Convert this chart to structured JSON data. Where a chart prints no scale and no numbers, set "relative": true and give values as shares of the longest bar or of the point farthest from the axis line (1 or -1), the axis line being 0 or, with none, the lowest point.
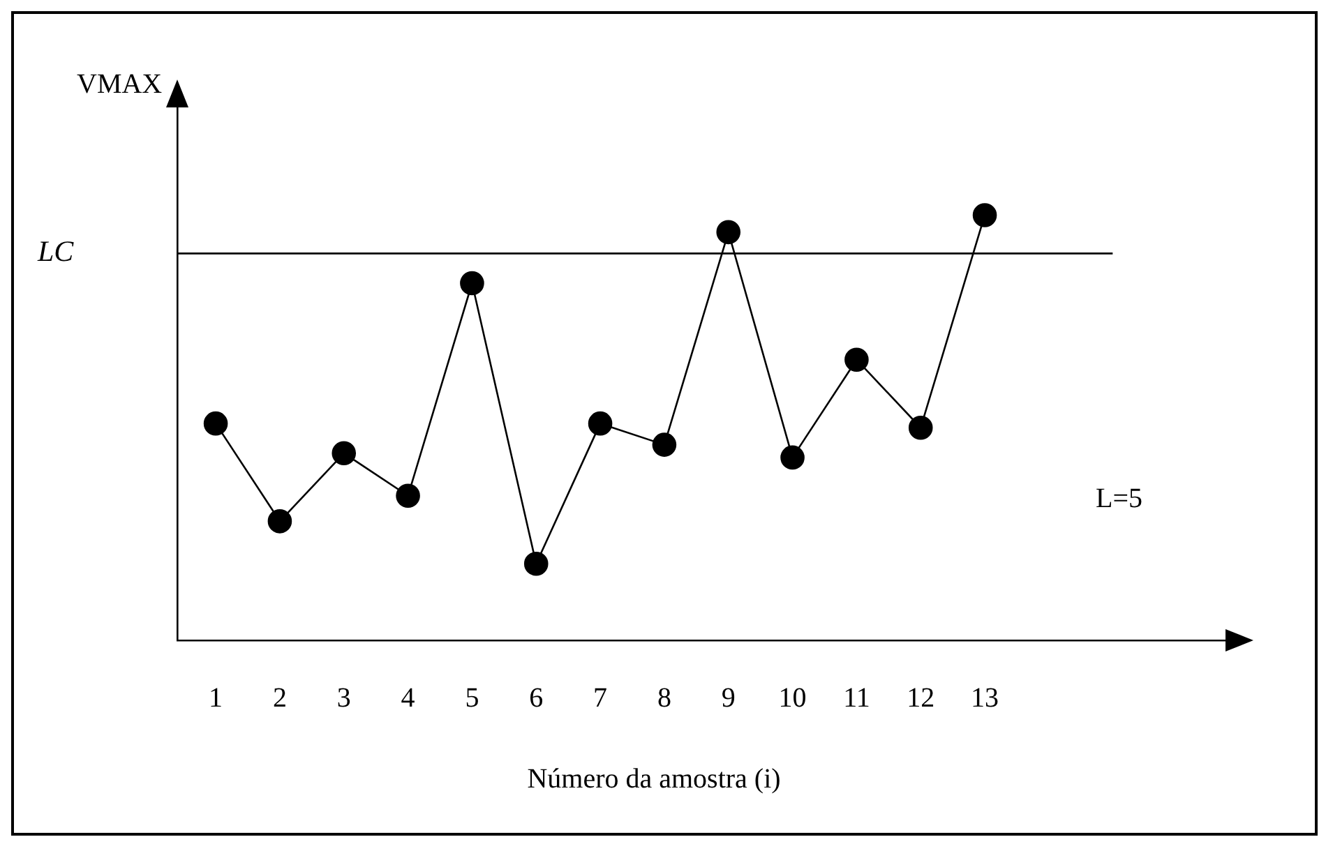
{
  "chart_data": {
    "type": "line",
    "relative": true,
    "xlabel": "Número da amostra (i)",
    "ylabel": "VMAX",
    "x": [
      1,
      2,
      3,
      4,
      5,
      6,
      7,
      8,
      9,
      10,
      11,
      12,
      13
    ],
    "xlim": [
      0.4,
      16.8
    ],
    "xticks": [
      1,
      2,
      3,
      4,
      5,
      6,
      7,
      8,
      9,
      10,
      11,
      12,
      13
    ],
    "series": [
      {
        "color": "#000000",
        "values": [
          0.51,
          0.28,
          0.44,
          0.34,
          0.84,
          0.18,
          0.51,
          0.46,
          0.96,
          0.43,
          0.66,
          0.5,
          1
        ]
      }
    ],
    "marker": "circle",
    "line_style": "solid",
    "grid": false,
    "legend": false,
    "ref_lines": [
      {
        "axis": "y",
        "value": 0.91,
        "label": "LC",
        "color": "#000000"
      }
    ],
    "annotations": [
      "L=5"
    ]
  }
}
